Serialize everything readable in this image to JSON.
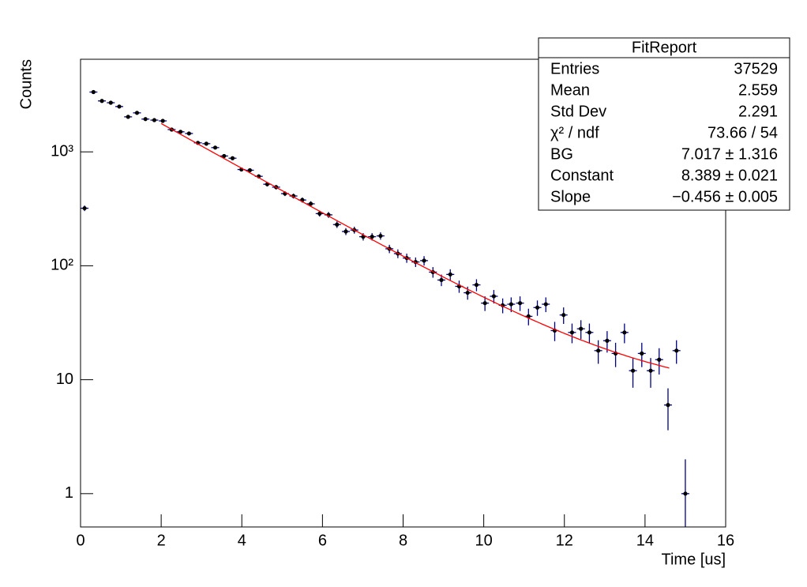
{
  "chart_data": {
    "type": "scatter",
    "x_label": "Time [us]",
    "y_label": "Counts",
    "log_y": true,
    "marker_color": "#000000",
    "error_color": "#000080",
    "fit_color": "#ff0000",
    "xlim": [
      0,
      16
    ],
    "xticks": [
      0,
      2,
      4,
      6,
      8,
      10,
      12,
      14,
      16
    ],
    "ylim": [
      0.51,
      6500
    ],
    "yticks": [
      1,
      10,
      {
        "value": 100,
        "label": "10²"
      },
      {
        "value": 1000,
        "label": "10³"
      }
    ],
    "x": [
      0.1,
      0.32,
      0.53,
      0.75,
      0.96,
      1.18,
      1.4,
      1.61,
      1.83,
      2.04,
      2.26,
      2.48,
      2.69,
      2.91,
      3.12,
      3.34,
      3.56,
      3.77,
      3.99,
      4.2,
      4.42,
      4.63,
      4.85,
      5.07,
      5.28,
      5.5,
      5.71,
      5.93,
      6.15,
      6.36,
      6.58,
      6.79,
      7.01,
      7.23,
      7.44,
      7.66,
      7.87,
      8.09,
      8.31,
      8.52,
      8.74,
      8.95,
      9.17,
      9.39,
      9.6,
      9.82,
      10.03,
      10.25,
      10.47,
      10.68,
      10.9,
      11.11,
      11.33,
      11.54,
      11.76,
      11.98,
      12.19,
      12.41,
      12.62,
      12.84,
      13.06,
      13.27,
      13.49,
      13.7,
      13.92,
      14.14,
      14.35,
      14.57,
      14.78,
      15.0
    ],
    "values": [
      320,
      3350,
      2800,
      2700,
      2500,
      2030,
      2200,
      1940,
      1900,
      1870,
      1570,
      1500,
      1450,
      1200,
      1180,
      1090,
      920,
      880,
      700,
      690,
      610,
      520,
      490,
      430,
      410,
      378,
      350,
      287,
      280,
      230,
      200,
      206,
      180,
      180,
      183,
      141,
      128,
      117,
      108,
      111,
      88,
      75,
      84,
      66,
      58,
      68,
      47,
      54,
      45,
      46,
      47,
      36,
      43,
      46,
      27,
      37,
      26,
      28,
      26,
      18,
      22,
      17,
      26,
      12,
      17,
      12,
      15,
      6,
      18,
      1
    ],
    "errors": [
      17.9,
      57.9,
      52.9,
      52.0,
      50.0,
      45.1,
      46.9,
      44.0,
      43.6,
      43.2,
      39.6,
      38.7,
      38.1,
      34.6,
      34.4,
      33.0,
      30.3,
      29.7,
      26.5,
      26.3,
      24.7,
      22.8,
      22.1,
      20.7,
      20.2,
      19.4,
      18.7,
      16.9,
      16.7,
      15.2,
      14.1,
      14.4,
      13.4,
      13.4,
      13.5,
      11.9,
      11.3,
      10.8,
      10.4,
      10.5,
      9.4,
      8.7,
      9.2,
      8.1,
      7.6,
      8.2,
      6.9,
      7.3,
      6.7,
      6.8,
      6.9,
      6.0,
      6.6,
      6.8,
      5.2,
      6.1,
      5.1,
      5.3,
      5.1,
      4.2,
      4.7,
      4.1,
      5.1,
      3.5,
      4.1,
      3.5,
      3.9,
      2.4,
      4.2,
      1
    ],
    "fit_range": [
      2.0,
      14.6
    ],
    "fit": {
      "bg": {
        "value": 7.017,
        "label": "7.017 ± 1.316"
      },
      "constant": {
        "value": 8.389,
        "label": "8.389 ± 0.021"
      },
      "slope": {
        "value": -0.456,
        "label": "−0.456 ± 0.005"
      }
    },
    "stats": {
      "title": "FitReport",
      "rows": [
        {
          "label": "Entries",
          "value": "37529"
        },
        {
          "label": "Mean",
          "value": "2.559"
        },
        {
          "label": "Std Dev",
          "value": "2.291"
        },
        {
          "label": "χ² / ndf",
          "value": "73.66 / 54"
        },
        {
          "label": "BG",
          "value": "chart_data.fit.bg.label"
        },
        {
          "label": "Constant",
          "value": "chart_data.fit.constant.label"
        },
        {
          "label": "Slope",
          "value": "chart_data.fit.slope.label"
        }
      ]
    }
  }
}
